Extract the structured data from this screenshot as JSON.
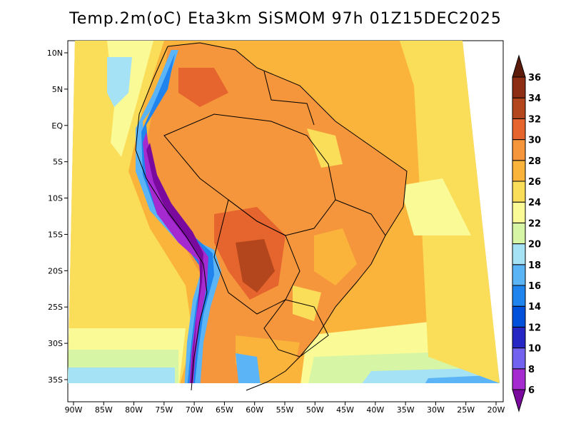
{
  "title": "Temp.2m(oC) Eta3km SiSMOM 97h 01Z15DEC2025",
  "x_ticks": [
    {
      "lon": -90,
      "label": "90W"
    },
    {
      "lon": -85,
      "label": "85W"
    },
    {
      "lon": -80,
      "label": "80W"
    },
    {
      "lon": -75,
      "label": "75W"
    },
    {
      "lon": -70,
      "label": "70W"
    },
    {
      "lon": -65,
      "label": "65W"
    },
    {
      "lon": -60,
      "label": "60W"
    },
    {
      "lon": -55,
      "label": "55W"
    },
    {
      "lon": -50,
      "label": "50W"
    },
    {
      "lon": -45,
      "label": "45W"
    },
    {
      "lon": -40,
      "label": "40W"
    },
    {
      "lon": -35,
      "label": "35W"
    },
    {
      "lon": -30,
      "label": "30W"
    },
    {
      "lon": -25,
      "label": "25W"
    },
    {
      "lon": -20,
      "label": "20W"
    }
  ],
  "y_ticks": [
    {
      "lat": 10,
      "label": "10N"
    },
    {
      "lat": 5,
      "label": "5N"
    },
    {
      "lat": 0,
      "label": "EQ"
    },
    {
      "lat": -5,
      "label": "5S"
    },
    {
      "lat": -10,
      "label": "10S"
    },
    {
      "lat": -15,
      "label": "15S"
    },
    {
      "lat": -20,
      "label": "20S"
    },
    {
      "lat": -25,
      "label": "25S"
    },
    {
      "lat": -30,
      "label": "30S"
    },
    {
      "lat": -35,
      "label": "35S"
    }
  ],
  "colorbar": {
    "levels": [
      "6",
      "8",
      "10",
      "12",
      "14",
      "16",
      "18",
      "20",
      "22",
      "24",
      "26",
      "28",
      "30",
      "32",
      "34",
      "36"
    ],
    "colors": [
      "#7a0a9e",
      "#a52bd1",
      "#7262f0",
      "#2626c4",
      "#0050dc",
      "#1f84ee",
      "#5ab4f5",
      "#a6e2f6",
      "#d6f5a5",
      "#fafa96",
      "#fade5a",
      "#fab43c",
      "#f5963c",
      "#e6642d",
      "#b4461e",
      "#8c2d14",
      "#5c1b0b"
    ]
  }
}
